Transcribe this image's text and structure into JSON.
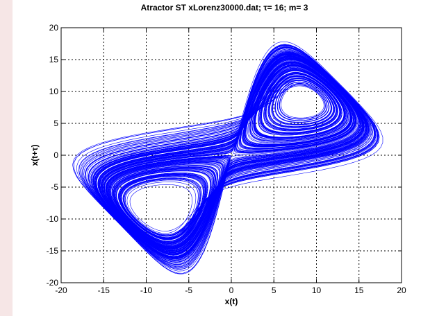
{
  "chart_data": {
    "type": "line",
    "title": "Atractor ST   xLorenz30000.dat; τ= 16; m= 3",
    "xlabel": "x(t)",
    "ylabel": "x(t+τ)",
    "xlim": [
      -20,
      20
    ],
    "ylim": [
      -20,
      20
    ],
    "xticks": [
      -20,
      -15,
      -10,
      -5,
      0,
      5,
      10,
      15,
      20
    ],
    "yticks": [
      -20,
      -15,
      -10,
      -5,
      0,
      5,
      10,
      15,
      20
    ],
    "xticklabels": [
      "-20",
      "-15",
      "-10",
      "-5",
      "0",
      "5",
      "10",
      "15",
      "20"
    ],
    "yticklabels": [
      "-20",
      "-15",
      "-10",
      "-5",
      "0",
      "5",
      "10",
      "15",
      "20"
    ],
    "grid": true,
    "grid_style": "dotted",
    "series": [
      {
        "color": "#0000ff",
        "description_points": [
          [
            8,
            8.5
          ],
          [
            12,
            6
          ],
          [
            16,
            5
          ],
          [
            17.5,
            6
          ],
          [
            15,
            10
          ],
          [
            10,
            14
          ],
          [
            5,
            17
          ],
          [
            0,
            18
          ],
          [
            -3,
            13
          ],
          [
            -5,
            3
          ],
          [
            -6,
            -4
          ],
          [
            -9,
            -7
          ],
          [
            -14,
            -5
          ],
          [
            -18,
            -5.5
          ],
          [
            -15,
            -10
          ],
          [
            -10,
            -14
          ],
          [
            -3,
            -18
          ],
          [
            2,
            -17
          ],
          [
            4,
            -8
          ],
          [
            5,
            5
          ],
          [
            7,
            9
          ],
          [
            8.2,
            8.3
          ]
        ]
      }
    ]
  }
}
